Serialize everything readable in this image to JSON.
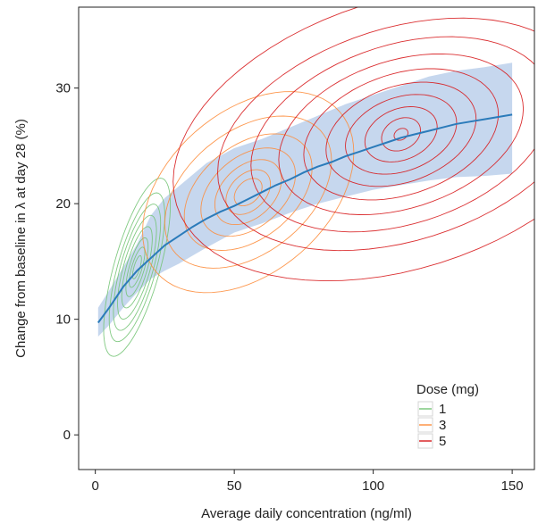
{
  "chart_data": {
    "type": "line",
    "xlabel": "Average daily concentration (ng/ml)",
    "ylabel": "Change from baseline in λ at day 28 (%)",
    "xlim": [
      -6,
      158
    ],
    "ylim": [
      -3,
      37
    ],
    "x_ticks": [
      0,
      50,
      100,
      150
    ],
    "y_ticks": [
      0,
      10,
      20,
      30
    ],
    "grid": false,
    "legend_position": "bottom-right",
    "legend": {
      "title": "Dose (mg)",
      "entries": [
        {
          "label": "1",
          "color": "#74c476"
        },
        {
          "label": "3",
          "color": "#fd8d3c"
        },
        {
          "label": "5",
          "color": "#d7191c"
        }
      ]
    },
    "band": {
      "fill_color": "#c6d7ee",
      "x": [
        1,
        5,
        10,
        15,
        20,
        25,
        30,
        35,
        40,
        50,
        60,
        70,
        80,
        90,
        100,
        110,
        120,
        130,
        140,
        150
      ],
      "lower": [
        8.5,
        9.5,
        11,
        12.3,
        13.5,
        14.2,
        14.8,
        15.5,
        16.2,
        17.5,
        18.3,
        19.2,
        20,
        20.6,
        21.2,
        21.6,
        22,
        22.3,
        22.4,
        22.6
      ],
      "upper": [
        11,
        12.5,
        14.5,
        16.5,
        19,
        20.5,
        21.5,
        22.5,
        23.5,
        24.8,
        25.6,
        26.6,
        27.6,
        28.6,
        29.4,
        30.2,
        31,
        31.5,
        31.8,
        32.2
      ]
    },
    "series": [
      {
        "color": "#2b7bba",
        "x": [
          1,
          5,
          10,
          15,
          20,
          25,
          30,
          35,
          40,
          45,
          50,
          55,
          60,
          65,
          70,
          75,
          80,
          85,
          90,
          95,
          100,
          105,
          110,
          115,
          120,
          125,
          130,
          135,
          140,
          145,
          150
        ],
        "y": [
          9.7,
          11,
          12.8,
          14.2,
          15.3,
          16.4,
          17.2,
          18,
          18.7,
          19.3,
          19.8,
          20.4,
          21,
          21.6,
          22.1,
          22.7,
          23.2,
          23.6,
          24.1,
          24.5,
          24.9,
          25.3,
          25.7,
          26,
          26.3,
          26.6,
          26.9,
          27.1,
          27.3,
          27.5,
          27.7
        ]
      }
    ],
    "density_contours": [
      {
        "dose": "1",
        "color": "#74c476",
        "cx": 15,
        "cy": 14.5,
        "rx": [
          12,
          10,
          8.5,
          7,
          5.5,
          4,
          2.8,
          1.6
        ],
        "ry": [
          5.5,
          4.6,
          3.9,
          3.2,
          2.5,
          1.8,
          1.2,
          0.7
        ],
        "slope": 0.45
      },
      {
        "dose": "3",
        "color": "#fd8d3c",
        "cx": 55,
        "cy": 21,
        "rx": [
          38,
          30,
          23,
          17,
          12,
          8,
          5
        ],
        "ry": [
          8,
          6,
          4.6,
          3.5,
          2.6,
          1.8,
          1.1
        ],
        "slope": 0.09
      },
      {
        "dose": "5",
        "color": "#d7191c",
        "cx": 110,
        "cy": 26,
        "rx": [
          82,
          66,
          54,
          44,
          35,
          27,
          20,
          13,
          7,
          2.5
        ],
        "ry": [
          12,
          9.5,
          8,
          6.6,
          5.4,
          4.3,
          3.3,
          2.3,
          1.4,
          0.5
        ],
        "slope": 0.05
      }
    ]
  }
}
